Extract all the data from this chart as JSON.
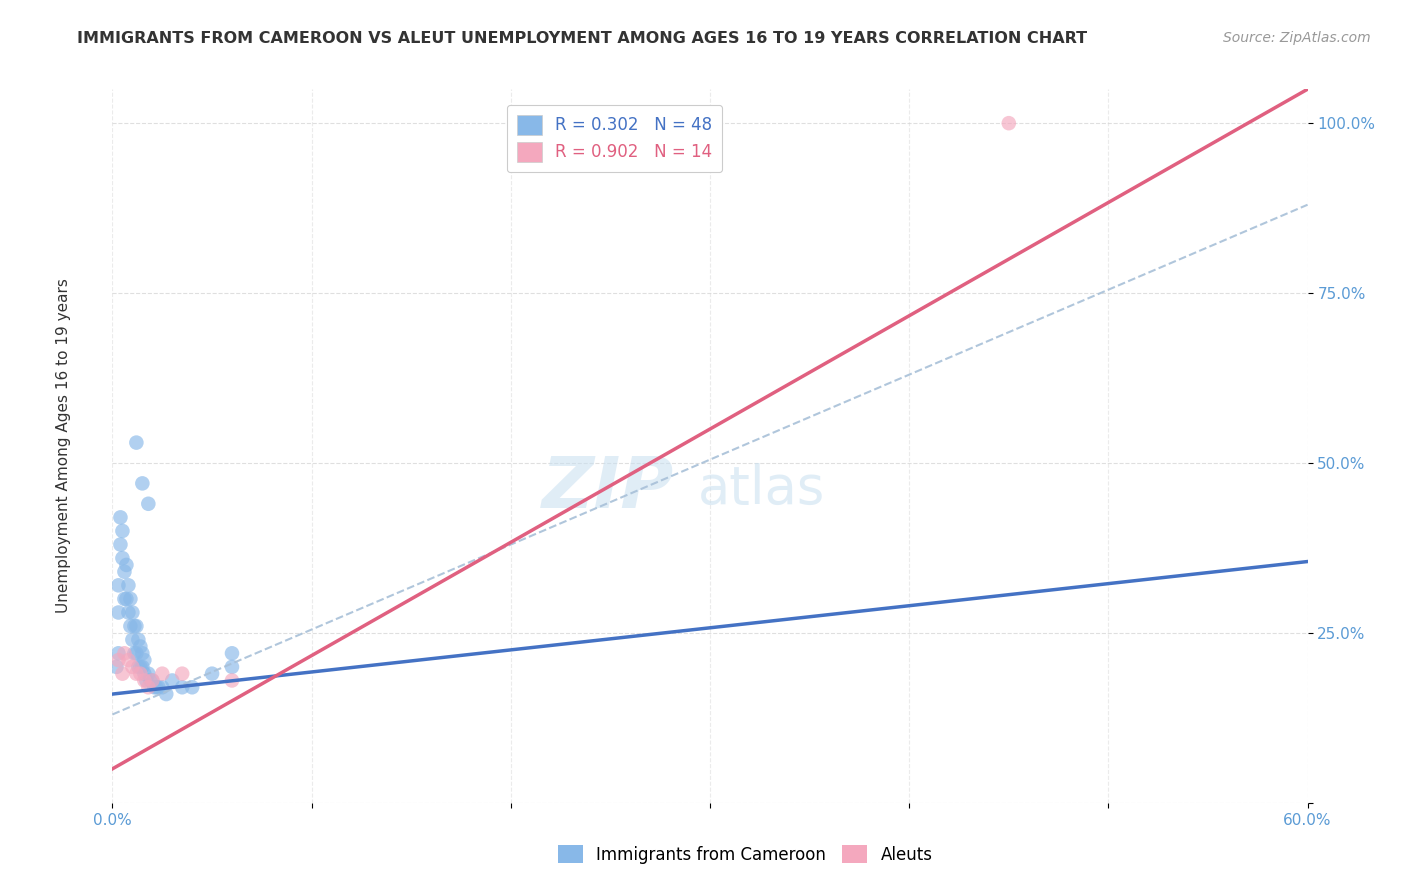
{
  "title": "IMMIGRANTS FROM CAMEROON VS ALEUT UNEMPLOYMENT AMONG AGES 16 TO 19 YEARS CORRELATION CHART",
  "source": "Source: ZipAtlas.com",
  "ylabel": "Unemployment Among Ages 16 to 19 years",
  "xlim": [
    0.0,
    0.6
  ],
  "ylim": [
    0.0,
    1.05
  ],
  "x_ticks": [
    0.0,
    0.1,
    0.2,
    0.3,
    0.4,
    0.5,
    0.6
  ],
  "x_tick_labels": [
    "0.0%",
    "",
    "",
    "",
    "",
    "",
    "60.0%"
  ],
  "y_ticks": [
    0.0,
    0.25,
    0.5,
    0.75,
    1.0
  ],
  "y_tick_labels": [
    "",
    "25.0%",
    "50.0%",
    "75.0%",
    "100.0%"
  ],
  "legend1_label": "R = 0.302   N = 48",
  "legend2_label": "R = 0.902   N = 14",
  "legend_bottom_label1": "Immigrants from Cameroon",
  "legend_bottom_label2": "Aleuts",
  "watermark_zip": "ZIP",
  "watermark_atlas": "atlas",
  "blue_color": "#88b8e8",
  "pink_color": "#f4a8be",
  "blue_line_color": "#4472c4",
  "pink_line_color": "#e06080",
  "dashed_line_color": "#a8c0d8",
  "blue_scatter": [
    [
      0.002,
      0.2
    ],
    [
      0.003,
      0.22
    ],
    [
      0.003,
      0.28
    ],
    [
      0.003,
      0.32
    ],
    [
      0.004,
      0.38
    ],
    [
      0.004,
      0.42
    ],
    [
      0.005,
      0.36
    ],
    [
      0.005,
      0.4
    ],
    [
      0.006,
      0.3
    ],
    [
      0.006,
      0.34
    ],
    [
      0.007,
      0.3
    ],
    [
      0.007,
      0.35
    ],
    [
      0.008,
      0.28
    ],
    [
      0.008,
      0.32
    ],
    [
      0.009,
      0.26
    ],
    [
      0.009,
      0.3
    ],
    [
      0.01,
      0.24
    ],
    [
      0.01,
      0.28
    ],
    [
      0.011,
      0.22
    ],
    [
      0.011,
      0.26
    ],
    [
      0.012,
      0.22
    ],
    [
      0.012,
      0.26
    ],
    [
      0.013,
      0.2
    ],
    [
      0.013,
      0.24
    ],
    [
      0.014,
      0.2
    ],
    [
      0.014,
      0.23
    ],
    [
      0.015,
      0.2
    ],
    [
      0.015,
      0.22
    ],
    [
      0.016,
      0.19
    ],
    [
      0.016,
      0.21
    ],
    [
      0.017,
      0.18
    ],
    [
      0.018,
      0.19
    ],
    [
      0.019,
      0.18
    ],
    [
      0.02,
      0.18
    ],
    [
      0.021,
      0.17
    ],
    [
      0.022,
      0.17
    ],
    [
      0.023,
      0.17
    ],
    [
      0.025,
      0.17
    ],
    [
      0.027,
      0.16
    ],
    [
      0.03,
      0.18
    ],
    [
      0.035,
      0.17
    ],
    [
      0.04,
      0.17
    ],
    [
      0.05,
      0.19
    ],
    [
      0.06,
      0.2
    ],
    [
      0.012,
      0.53
    ],
    [
      0.015,
      0.47
    ],
    [
      0.018,
      0.44
    ],
    [
      0.06,
      0.22
    ]
  ],
  "pink_scatter": [
    [
      0.003,
      0.21
    ],
    [
      0.005,
      0.19
    ],
    [
      0.006,
      0.22
    ],
    [
      0.008,
      0.21
    ],
    [
      0.01,
      0.2
    ],
    [
      0.012,
      0.19
    ],
    [
      0.014,
      0.19
    ],
    [
      0.016,
      0.18
    ],
    [
      0.018,
      0.17
    ],
    [
      0.02,
      0.18
    ],
    [
      0.025,
      0.19
    ],
    [
      0.035,
      0.19
    ],
    [
      0.06,
      0.18
    ],
    [
      0.45,
      1.0
    ]
  ],
  "blue_line_x": [
    0.0,
    0.6
  ],
  "blue_line_y": [
    0.16,
    0.355
  ],
  "pink_line_x": [
    0.0,
    0.6
  ],
  "pink_line_y": [
    0.05,
    1.05
  ],
  "dashed_line_x": [
    0.0,
    0.6
  ],
  "dashed_line_y": [
    0.13,
    0.88
  ],
  "bg_color": "#ffffff",
  "grid_color": "#d8d8d8",
  "text_color": "#333333",
  "axis_label_color": "#5b9bd5",
  "title_fontsize": 11.5,
  "source_fontsize": 10,
  "tick_fontsize": 11,
  "ylabel_fontsize": 11,
  "legend_fontsize": 12,
  "scatter_size": 110,
  "scatter_alpha": 0.65
}
